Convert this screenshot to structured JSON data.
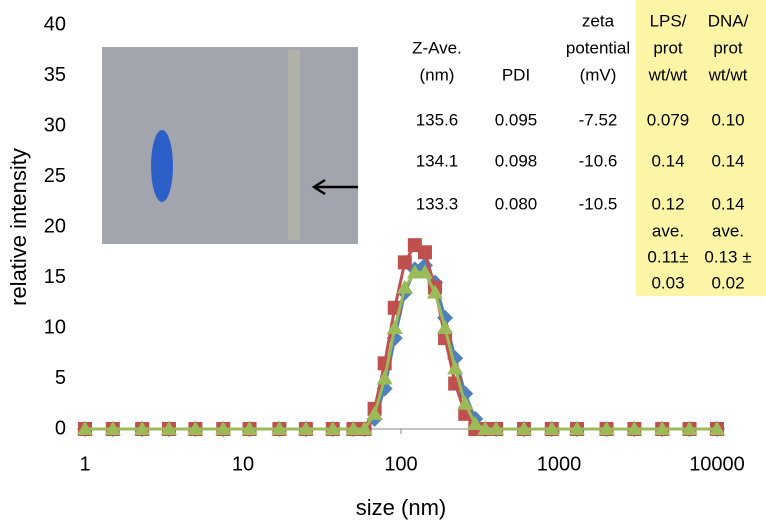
{
  "chart_data": {
    "type": "line",
    "x_label": "size (nm)",
    "y_label": "relative intensity",
    "x_scale": "log",
    "x": [
      1,
      1.5,
      2.3,
      3.4,
      5,
      7.5,
      11,
      17,
      25,
      37,
      50,
      58.77,
      68.06,
      78.82,
      91.28,
      105.7,
      122.4,
      141.8,
      164.2,
      190.1,
      220.2,
      255,
      295.3,
      342,
      400,
      600,
      900,
      1300,
      2000,
      3000,
      4500,
      6700,
      10000
    ],
    "series": [
      {
        "marker": "diamond",
        "color": "#4f81bd",
        "values": [
          0,
          0,
          0,
          0,
          0,
          0,
          0,
          0,
          0,
          0,
          0,
          0,
          1,
          4,
          9,
          13.5,
          15.8,
          16.2,
          14.5,
          11,
          7,
          3.5,
          1,
          0,
          0,
          0,
          0,
          0,
          0,
          0,
          0,
          0,
          0
        ]
      },
      {
        "marker": "square",
        "color": "#c0504d",
        "values": [
          0,
          0,
          0,
          0,
          0,
          0,
          0,
          0,
          0,
          0,
          0,
          0,
          2,
          6.5,
          12,
          16.5,
          18.2,
          17.5,
          14,
          9,
          4.5,
          1.5,
          0,
          0,
          0,
          0,
          0,
          0,
          0,
          0,
          0,
          0,
          0
        ]
      },
      {
        "marker": "triangle",
        "color": "#9bbb59",
        "values": [
          0,
          0,
          0,
          0,
          0,
          0,
          0,
          0,
          0,
          0,
          0,
          0,
          1.5,
          5,
          10,
          14,
          15.5,
          15.5,
          13.5,
          10,
          6,
          2.5,
          0.5,
          0,
          0,
          0,
          0,
          0,
          0,
          0,
          0,
          0,
          0
        ]
      }
    ],
    "xlim": [
      1,
      10000
    ],
    "xticks": [
      1,
      10,
      100,
      1000,
      10000
    ],
    "ylim": [
      0,
      40
    ],
    "yticks": [
      0,
      5,
      10,
      15,
      20,
      25,
      30,
      35,
      40
    ],
    "table": {
      "header": [
        [
          "Z-Ave.",
          "(nm)"
        ],
        [
          "PDI"
        ],
        [
          "zeta",
          "potential",
          "(mV)"
        ],
        [
          "LPS/",
          "prot",
          "wt/wt"
        ],
        [
          "DNA/",
          "prot",
          "wt/wt"
        ]
      ],
      "rows": [
        [
          "135.6",
          "0.095",
          "-7.52",
          "0.079",
          "0.10"
        ],
        [
          "134.1",
          "0.098",
          "-10.6",
          "0.14",
          "0.14"
        ],
        [
          "133.3",
          "0.080",
          "-10.5",
          "0.12",
          "0.14"
        ],
        [
          null,
          null,
          null,
          [
            "ave.",
            "0.11±",
            "0.03"
          ],
          [
            "ave.",
            "0.13 ±",
            "0.02"
          ]
        ]
      ]
    }
  }
}
